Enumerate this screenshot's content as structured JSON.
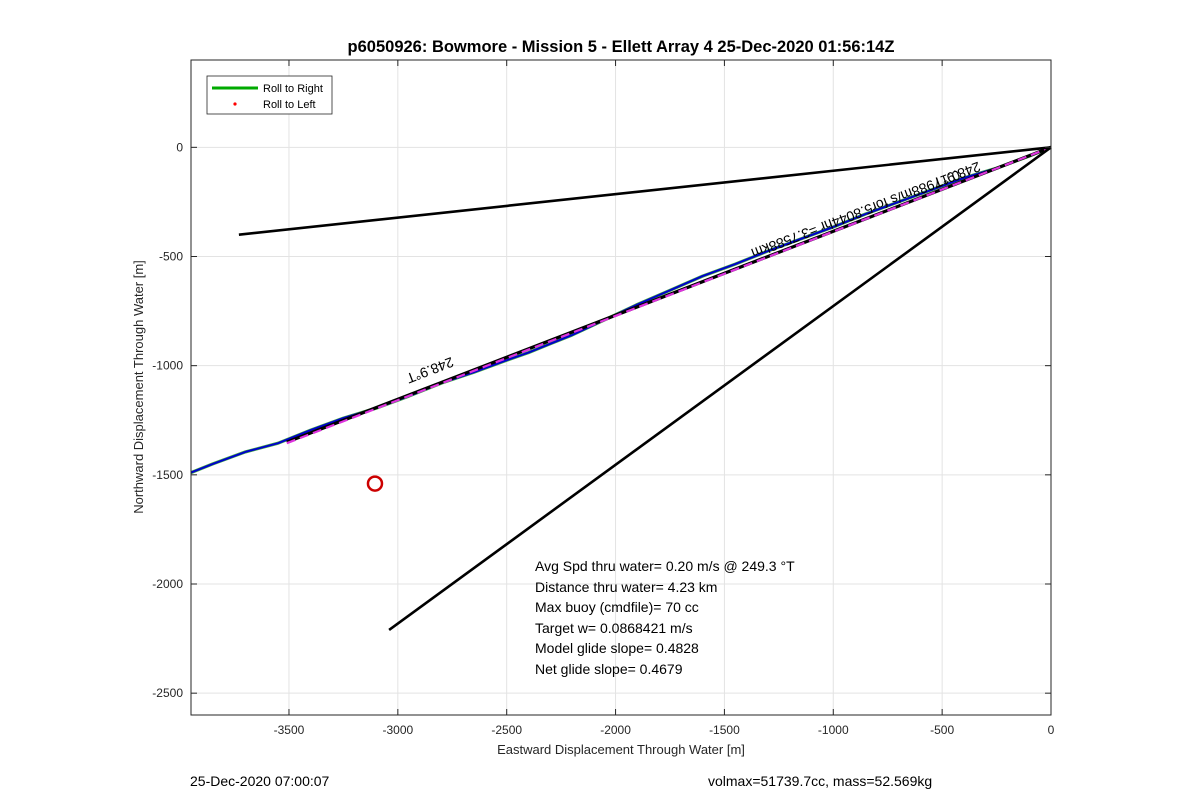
{
  "chart_data": {
    "type": "line",
    "title": "p6050926: Bowmore - Mission 5 - Ellett Array 4 25-Dec-2020 01:56:14Z",
    "xlabel": "Eastward Displacement Through Water [m]",
    "ylabel": "Northward Displacement Through Water [m]",
    "xlim": [
      -3950,
      0
    ],
    "ylim": [
      -2600,
      400
    ],
    "xticks": [
      -3500,
      -3000,
      -2500,
      -2000,
      -1500,
      -1000,
      -500,
      0
    ],
    "yticks": [
      0,
      -500,
      -1000,
      -1500,
      -2000,
      -2500
    ],
    "grid": true,
    "legend": {
      "position": "top-left",
      "entries": [
        {
          "label": "Roll to Right",
          "color": "#00aa00",
          "style": "line"
        },
        {
          "label": "Roll to Left",
          "color": "#ff0000",
          "style": "dot"
        }
      ]
    },
    "series": [
      {
        "color": "#0000cc",
        "style": "track",
        "x": [
          -3950,
          -3850,
          -3700,
          -3550,
          -3400,
          -3250,
          -3100,
          -2950,
          -2800,
          -2650,
          -2500,
          -2400,
          -2300,
          -2200,
          -2050,
          -1900,
          -1750,
          -1600,
          -1450,
          -1300,
          -1150,
          -1000,
          -850,
          -700,
          -550,
          -400,
          -250,
          -100,
          0
        ],
        "y": [
          -1490,
          -1450,
          -1395,
          -1355,
          -1295,
          -1240,
          -1195,
          -1140,
          -1080,
          -1030,
          -975,
          -940,
          -900,
          -860,
          -790,
          -720,
          -655,
          -590,
          -535,
          -475,
          -420,
          -365,
          -305,
          -250,
          -195,
          -140,
          -95,
          -40,
          0
        ]
      },
      {
        "color": "#000000",
        "style": "dashed-base",
        "x": [
          -3510,
          0
        ],
        "y": [
          -1350,
          0
        ]
      },
      {
        "color": "#dd33dd",
        "style": "dashed",
        "x": [
          -3510,
          0
        ],
        "y": [
          -1355,
          0
        ]
      },
      {
        "color": "#000000",
        "style": "line",
        "x": [
          -3730,
          0
        ],
        "y": [
          -400,
          0
        ]
      },
      {
        "color": "#000000",
        "style": "line",
        "x": [
          -3040,
          0
        ],
        "y": [
          -2210,
          0
        ]
      }
    ],
    "markers": [
      {
        "type": "circle",
        "color": "#cc0000",
        "x": -3105,
        "y": -1540
      }
    ],
    "annotations": [
      {
        "text": "248.9°T",
        "x": -2860,
        "y": -1000,
        "rotate": 159
      },
      {
        "text": "248.9°T",
        "x": -440,
        "y": -105,
        "rotate": 159
      },
      {
        "text": "0.17988m/s for5.8044hr =3.7588km",
        "x": -905,
        "y": -285,
        "rotate": 159
      }
    ],
    "stats": [
      "Avg Spd thru water=  0.20 m/s @ 249.3 °T",
      "Distance thru water=  4.23 km",
      "Max buoy (cmdfile)= 70 cc",
      "Target w= 0.0868421 m/s",
      "Model glide slope= 0.4828",
      "Net glide slope= 0.4679"
    ]
  },
  "footer": {
    "timestamp": "25-Dec-2020 07:00:07",
    "info": "volmax=51739.7cc, mass=52.569kg"
  }
}
